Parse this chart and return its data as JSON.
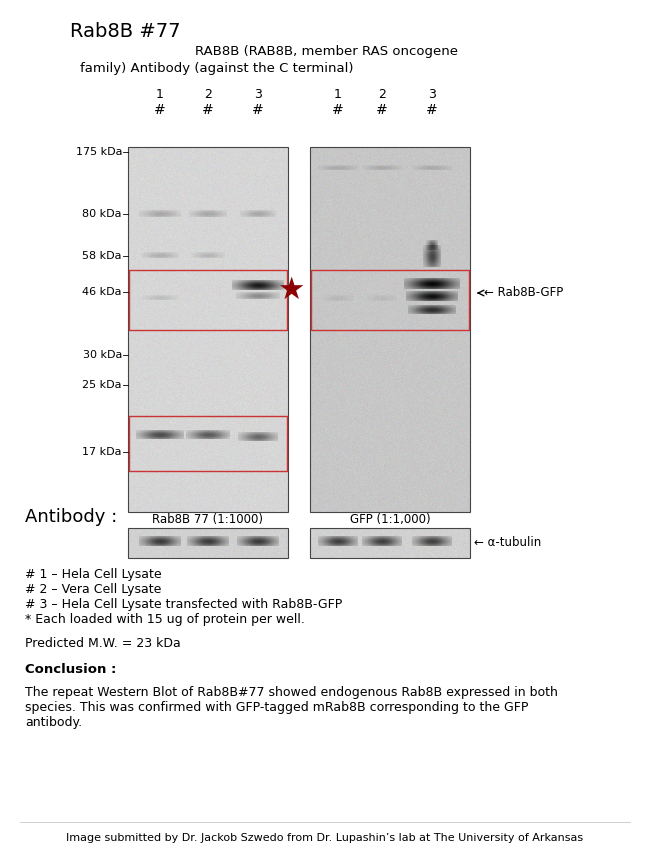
{
  "title_main": "Rab8B #77",
  "title_sub_line1": "RAB8B (RAB8B, member RAS oncogene",
  "title_sub_line2": "family) Antibody (against the C terminal)",
  "lane_labels": [
    "1",
    "2",
    "3"
  ],
  "mw_labels": [
    "175 kDa",
    "80 kDa",
    "58 kDa",
    "46 kDa",
    "30 kDa",
    "25 kDa",
    "17 kDa"
  ],
  "antibody_label": "Antibody :",
  "antibody1": "Rab8B 77 (1:1000)",
  "antibody2": "GFP (1:1,000)",
  "arrow_label1": "← Rab8B-GFP",
  "arrow_label2": "← α-tubulin",
  "legend_lines": [
    "# 1 – Hela Cell Lysate",
    "# 2 – Vera Cell Lysate",
    "# 3 – Hela Cell Lysate transfected with Rab8B-GFP",
    "* Each loaded with 15 ug of protein per well."
  ],
  "predicted_mw": "Predicted M.W. = 23 kDa",
  "conclusion_title": "Conclusion :",
  "conclusion_text": "The repeat Western Blot of Rab8B#77 showed endogenous Rab8B expressed in both\nspecies. This was confirmed with GFP-tagged mRab8B corresponding to the GFP\nantibody.",
  "footer": "Image submitted by Dr. Jackob Szwedo from Dr. Lupashin’s lab at The University of Arkansas",
  "bg_color": "#ffffff",
  "star_color": "#8b0000",
  "box_color": "#cc3333",
  "text_color": "#000000"
}
